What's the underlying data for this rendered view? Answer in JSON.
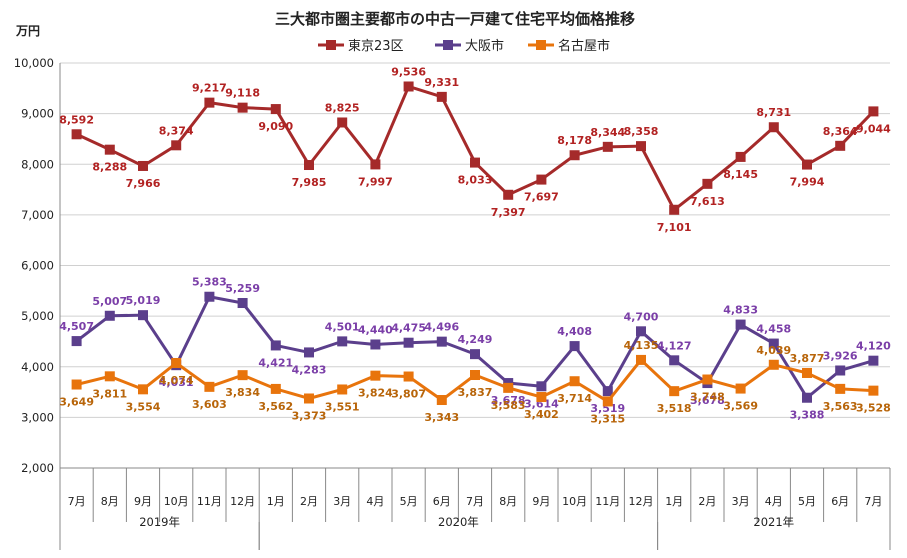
{
  "chart_data": {
    "type": "line",
    "title": "三大都市圏主要都市の中古一戸建て住宅平均価格推移",
    "unit_label": "万円",
    "ylim": [
      2000,
      10000
    ],
    "yticks": [
      2000,
      3000,
      4000,
      5000,
      6000,
      7000,
      8000,
      9000,
      10000
    ],
    "ytick_labels": [
      "2,000",
      "3,000",
      "4,000",
      "5,000",
      "6,000",
      "7,000",
      "8,000",
      "9,000",
      "10,000"
    ],
    "grid": true,
    "legend_position": "top-center",
    "categories": [
      "7月",
      "8月",
      "9月",
      "10月",
      "11月",
      "12月",
      "1月",
      "2月",
      "3月",
      "4月",
      "5月",
      "6月",
      "7月",
      "8月",
      "9月",
      "10月",
      "11月",
      "12月",
      "1月",
      "2月",
      "3月",
      "4月",
      "5月",
      "6月",
      "7月"
    ],
    "year_groups": [
      {
        "label": "2019年",
        "start": 0,
        "end": 5
      },
      {
        "label": "2020年",
        "start": 6,
        "end": 17
      },
      {
        "label": "2021年",
        "start": 18,
        "end": 24
      }
    ],
    "series": [
      {
        "name": "東京23区",
        "color": "#A52A2A",
        "label_color": "#B22222",
        "values": [
          8592,
          8288,
          7966,
          8374,
          9217,
          9118,
          9090,
          7985,
          8825,
          7997,
          9536,
          9331,
          8033,
          7397,
          7697,
          8178,
          8344,
          8358,
          7101,
          7613,
          8145,
          8731,
          7994,
          8364,
          9044
        ],
        "value_labels": [
          "8,592",
          "8,288",
          "7,966",
          "8,374",
          "9,217",
          "9,118",
          "9,090",
          "7,985",
          "8,825",
          "7,997",
          "9,536",
          "9,331",
          "8,033",
          "7,397",
          "7,697",
          "8,178",
          "8,344",
          "8,358",
          "7,101",
          "7,613",
          "8,145",
          "8,731",
          "7,994",
          "8,364",
          "9,044"
        ]
      },
      {
        "name": "大阪市",
        "color": "#5B3F8C",
        "label_color": "#7B3FA8",
        "values": [
          4507,
          5007,
          5019,
          4031,
          5383,
          5259,
          4421,
          4283,
          4501,
          4440,
          4475,
          4496,
          4249,
          3678,
          3614,
          4408,
          3519,
          4700,
          4127,
          3678,
          4833,
          4458,
          3388,
          3926,
          4120
        ],
        "value_labels": [
          "4,507",
          "5,007",
          "5,019",
          "4,031",
          "5,383",
          "5,259",
          "4,421",
          "4,283",
          "4,501",
          "4,440",
          "4,475",
          "4,496",
          "4,249",
          "3,678",
          "3,614",
          "4,408",
          "3,519",
          "4,700",
          "4,127",
          "3,678",
          "4,833",
          "4,458",
          "3,388",
          "3,926",
          "4,120"
        ]
      },
      {
        "name": "名古屋市",
        "color": "#E8740C",
        "label_color": "#B8650A",
        "values": [
          3649,
          3811,
          3554,
          4074,
          3603,
          3834,
          3562,
          3373,
          3551,
          3824,
          3807,
          3343,
          3837,
          3583,
          3402,
          3714,
          3315,
          4135,
          3518,
          3748,
          3569,
          4039,
          3877,
          3563,
          3528
        ],
        "value_labels": [
          "3,649",
          "3,811",
          "3,554",
          "4,074",
          "3,603",
          "3,834",
          "3,562",
          "3,373",
          "3,551",
          "3,824",
          "3,807",
          "3,343",
          "3,837",
          "3,583",
          "3,402",
          "3,714",
          "3,315",
          "4,135",
          "3,518",
          "3,748",
          "3,569",
          "4,039",
          "3,877",
          "3,563",
          "3,528"
        ]
      }
    ]
  }
}
